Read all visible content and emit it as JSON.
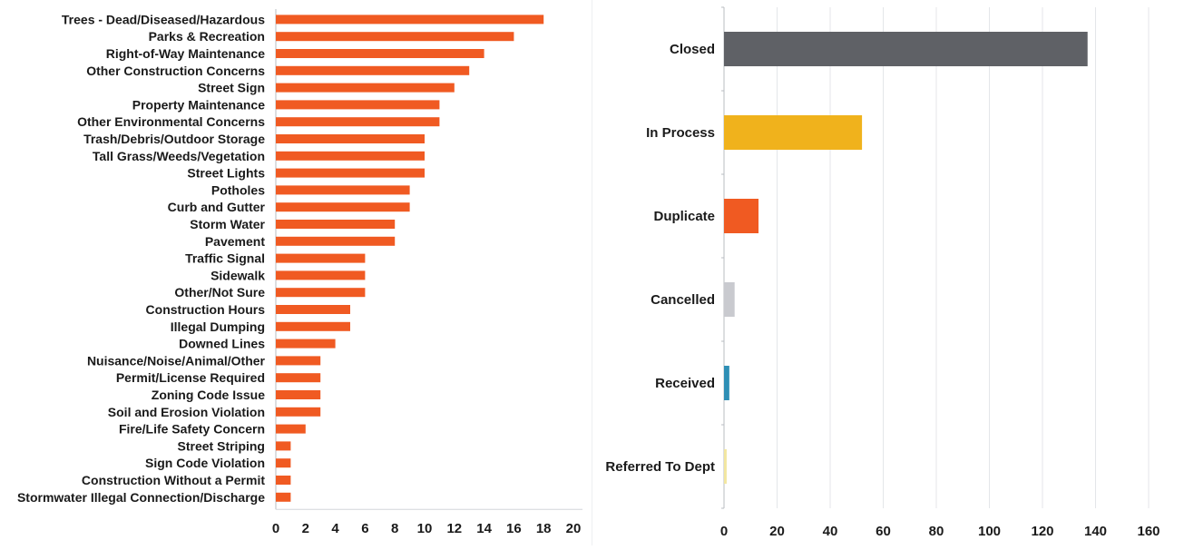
{
  "chart_data": [
    {
      "type": "bar",
      "orientation": "horizontal",
      "color": "#f05a22",
      "categories": [
        "Trees - Dead/Diseased/Hazardous",
        "Parks & Recreation",
        "Right-of-Way Maintenance",
        "Other Construction Concerns",
        "Street Sign",
        "Property Maintenance",
        "Other Environmental Concerns",
        "Trash/Debris/Outdoor Storage",
        "Tall Grass/Weeds/Vegetation",
        "Street Lights",
        "Potholes",
        "Curb and Gutter",
        "Storm Water",
        "Pavement",
        "Traffic Signal",
        "Sidewalk",
        "Other/Not Sure",
        "Construction Hours",
        "Illegal Dumping",
        "Downed Lines",
        "Nuisance/Noise/Animal/Other",
        "Permit/License Required",
        "Zoning Code Issue",
        "Soil and Erosion Violation",
        "Fire/Life Safety Concern",
        "Street Striping",
        "Sign Code Violation",
        "Construction Without a Permit",
        "Stormwater Illegal Connection/Discharge"
      ],
      "values": [
        18,
        16,
        14,
        13,
        12,
        11,
        11,
        10,
        10,
        10,
        9,
        9,
        8,
        8,
        6,
        6,
        6,
        5,
        5,
        4,
        3,
        3,
        3,
        3,
        2,
        1,
        1,
        1,
        1
      ],
      "xlim": [
        0,
        20
      ],
      "xticks": [
        "0",
        "2",
        "4",
        "6",
        "8",
        "10",
        "12",
        "14",
        "16",
        "18",
        "20"
      ],
      "grid": false,
      "title": "",
      "xlabel": "",
      "ylabel": ""
    },
    {
      "type": "bar",
      "orientation": "horizontal",
      "categories": [
        "Closed",
        "In Process",
        "Duplicate",
        "Cancelled",
        "Received",
        "Referred To Dept"
      ],
      "values": [
        137,
        52,
        13,
        4,
        2,
        1
      ],
      "colors": [
        "#5f6166",
        "#f0b21c",
        "#f05a22",
        "#c9cacf",
        "#2e8fb5",
        "#f2e6a0"
      ],
      "xlim": [
        0,
        160
      ],
      "xticks": [
        "0",
        "20",
        "40",
        "60",
        "80",
        "100",
        "120",
        "140",
        "160"
      ],
      "grid": true,
      "title": "",
      "xlabel": "",
      "ylabel": ""
    }
  ]
}
